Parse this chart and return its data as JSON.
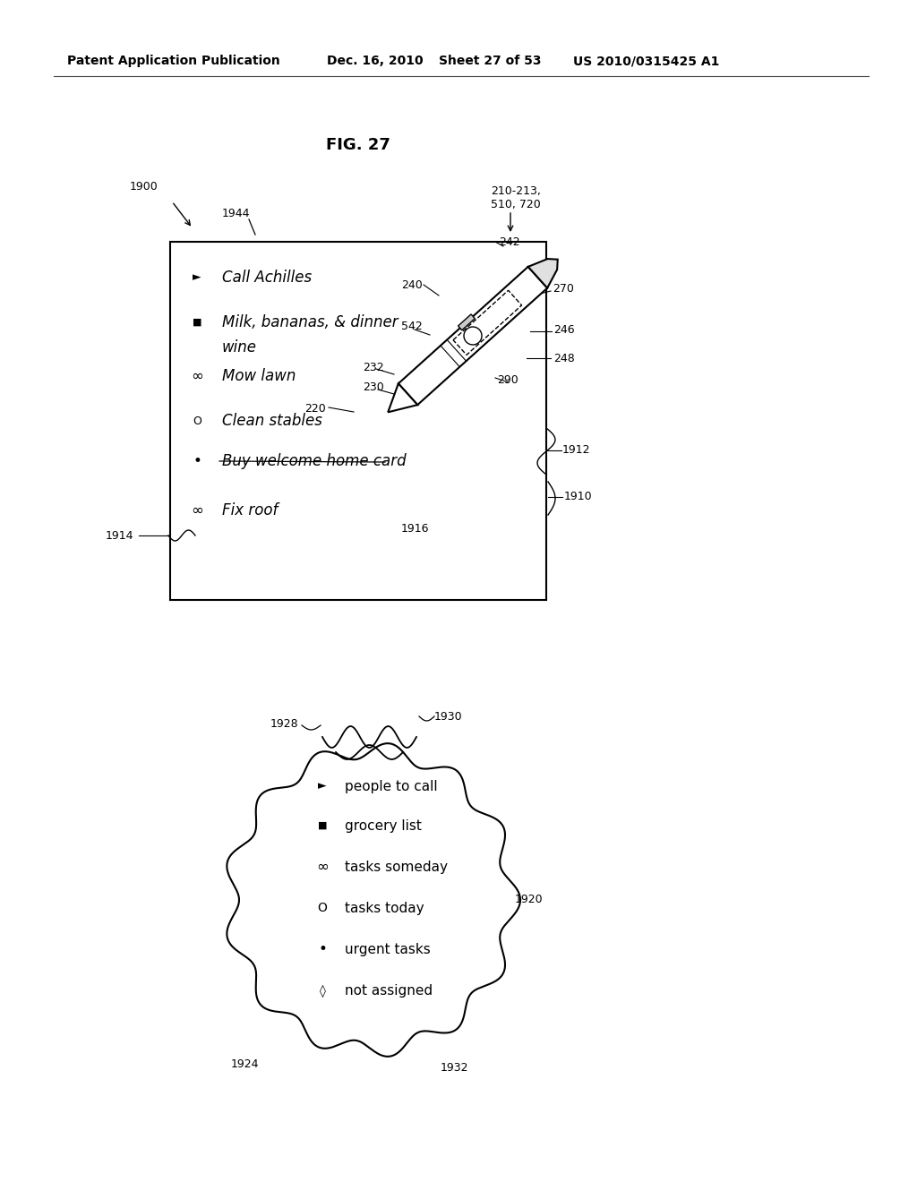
{
  "patent_number": "US 2010/0315425 A1",
  "fig_label": "FIG. 27",
  "bg_color": "#ffffff",
  "list_items_top": [
    {
      "symbol": "►",
      "text": "Call Achilles"
    },
    {
      "symbol": "■",
      "text": "Milk, bananas, & dinner\nwine"
    },
    {
      "symbol": "∞",
      "text": "Mow lawn"
    },
    {
      "symbol": "O",
      "text": "Clean stables"
    },
    {
      "symbol": "•",
      "text": "Buy welcome home card"
    },
    {
      "symbol": "∞",
      "text": "Fix roof"
    }
  ],
  "list_items_bottom": [
    {
      "symbol": "►",
      "text": "people to call"
    },
    {
      "symbol": "■",
      "text": "grocery list"
    },
    {
      "symbol": "∞",
      "text": "tasks someday"
    },
    {
      "symbol": "O",
      "text": "tasks today"
    },
    {
      "symbol": "•",
      "text": "urgent tasks"
    },
    {
      "symbol": "◊",
      "text": "not assigned"
    }
  ]
}
